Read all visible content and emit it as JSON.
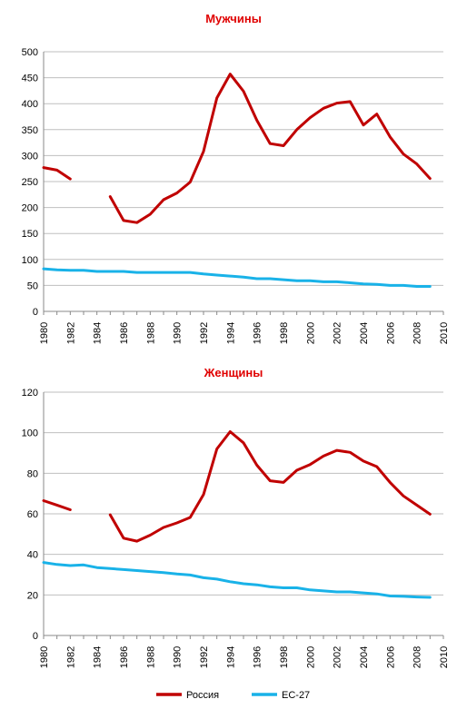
{
  "legend": [
    {
      "name": "Россия",
      "color": "#c00000"
    },
    {
      "name": "ЕС-27",
      "color": "#19b2e8"
    }
  ],
  "chart_data": [
    {
      "type": "line",
      "title": "Мужчины",
      "xlabel": "",
      "ylabel": "",
      "ylim": [
        0,
        500
      ],
      "yticks": [
        0,
        50,
        100,
        150,
        200,
        250,
        300,
        350,
        400,
        450,
        500
      ],
      "xlim": [
        1980,
        2010
      ],
      "xticks": [
        1980,
        1982,
        1984,
        1986,
        1988,
        1990,
        1992,
        1994,
        1996,
        1998,
        2000,
        2002,
        2004,
        2006,
        2008,
        2010
      ],
      "grid": true,
      "legend_position": "bottom",
      "series": [
        {
          "name": "Россия",
          "color": "#c00000",
          "x": [
            1980,
            1981,
            1982,
            1983,
            1984,
            1985,
            1986,
            1987,
            1988,
            1989,
            1990,
            1991,
            1992,
            1993,
            1994,
            1995,
            1996,
            1997,
            1998,
            1999,
            2000,
            2001,
            2002,
            2003,
            2004,
            2005,
            2006,
            2007,
            2008,
            2009
          ],
          "values": [
            277,
            272,
            255,
            null,
            null,
            221,
            175,
            171,
            187,
            215,
            228,
            249,
            308,
            411,
            457,
            424,
            368,
            323,
            319,
            350,
            373,
            391,
            401,
            404,
            359,
            380,
            336,
            303,
            284,
            256
          ]
        },
        {
          "name": "ЕС-27",
          "color": "#19b2e8",
          "x": [
            1980,
            1981,
            1982,
            1983,
            1984,
            1985,
            1986,
            1987,
            1988,
            1989,
            1990,
            1991,
            1992,
            1993,
            1994,
            1995,
            1996,
            1997,
            1998,
            1999,
            2000,
            2001,
            2002,
            2003,
            2004,
            2005,
            2006,
            2007,
            2008,
            2009
          ],
          "values": [
            82,
            80,
            79,
            79,
            77,
            77,
            77,
            75,
            75,
            75,
            75,
            75,
            72,
            70,
            68,
            66,
            63,
            63,
            61,
            59,
            59,
            57,
            57,
            55,
            53,
            52,
            50,
            50,
            48,
            48
          ]
        }
      ]
    },
    {
      "type": "line",
      "title": "Женщины",
      "xlabel": "",
      "ylabel": "",
      "ylim": [
        0,
        120
      ],
      "yticks": [
        0,
        20,
        40,
        60,
        80,
        100,
        120
      ],
      "xlim": [
        1980,
        2010
      ],
      "xticks": [
        1980,
        1982,
        1984,
        1986,
        1988,
        1990,
        1992,
        1994,
        1996,
        1998,
        2000,
        2002,
        2004,
        2006,
        2008,
        2010
      ],
      "grid": true,
      "legend_position": "bottom",
      "series": [
        {
          "name": "Россия",
          "color": "#c00000",
          "x": [
            1980,
            1981,
            1982,
            1983,
            1984,
            1985,
            1986,
            1987,
            1988,
            1989,
            1990,
            1991,
            1992,
            1993,
            1994,
            1995,
            1996,
            1997,
            1998,
            1999,
            2000,
            2001,
            2002,
            2003,
            2004,
            2005,
            2006,
            2007,
            2008,
            2009
          ],
          "values": [
            66.5,
            64.3,
            62,
            null,
            null,
            59.5,
            48,
            46.5,
            49.5,
            53.3,
            55.5,
            58.2,
            69.5,
            92,
            100.5,
            95,
            84,
            76.3,
            75.5,
            81.5,
            84.3,
            88.5,
            91.3,
            90.3,
            86,
            83.3,
            75.5,
            68.8,
            64.3,
            59.8
          ]
        },
        {
          "name": "ЕС-27",
          "color": "#19b2e8",
          "x": [
            1980,
            1981,
            1982,
            1983,
            1984,
            1985,
            1986,
            1987,
            1988,
            1989,
            1990,
            1991,
            1992,
            1993,
            1994,
            1995,
            1996,
            1997,
            1998,
            1999,
            2000,
            2001,
            2002,
            2003,
            2004,
            2005,
            2006,
            2007,
            2008,
            2009
          ],
          "values": [
            36,
            35,
            34.5,
            34.8,
            33.5,
            33,
            32.5,
            32,
            31.5,
            31,
            30.3,
            29.8,
            28.5,
            27.8,
            26.5,
            25.5,
            25,
            24,
            23.5,
            23.5,
            22.5,
            22,
            21.5,
            21.5,
            21,
            20.5,
            19.5,
            19.3,
            19,
            18.8
          ]
        }
      ]
    }
  ]
}
